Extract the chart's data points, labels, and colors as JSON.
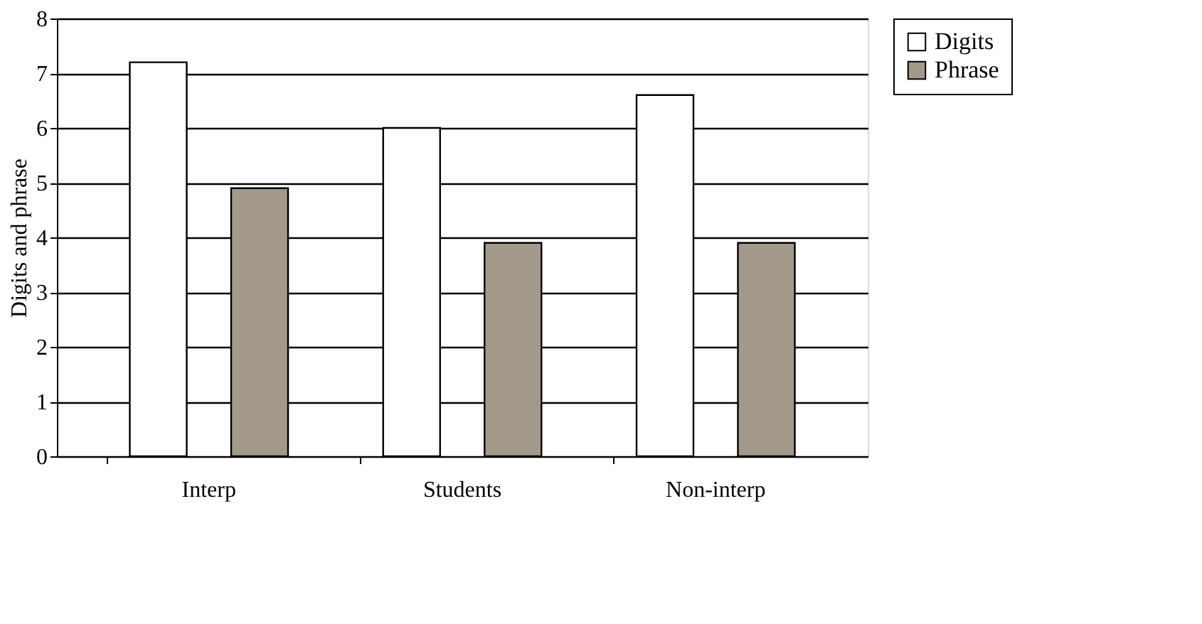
{
  "chart_data": {
    "type": "bar",
    "ylabel": "Digits and phrase",
    "categories": [
      "Interp",
      "Students",
      "Non-interp"
    ],
    "series": [
      {
        "name": "Digits",
        "color": "#ffffff",
        "values": [
          7.2,
          6.0,
          6.6
        ]
      },
      {
        "name": "Phrase",
        "color": "#a3998a",
        "values": [
          4.9,
          3.9,
          3.9
        ]
      }
    ],
    "ylim": [
      0,
      8
    ],
    "yticks": [
      0,
      1,
      2,
      3,
      4,
      5,
      6,
      7,
      8
    ],
    "grid": "y",
    "legend": "right"
  }
}
